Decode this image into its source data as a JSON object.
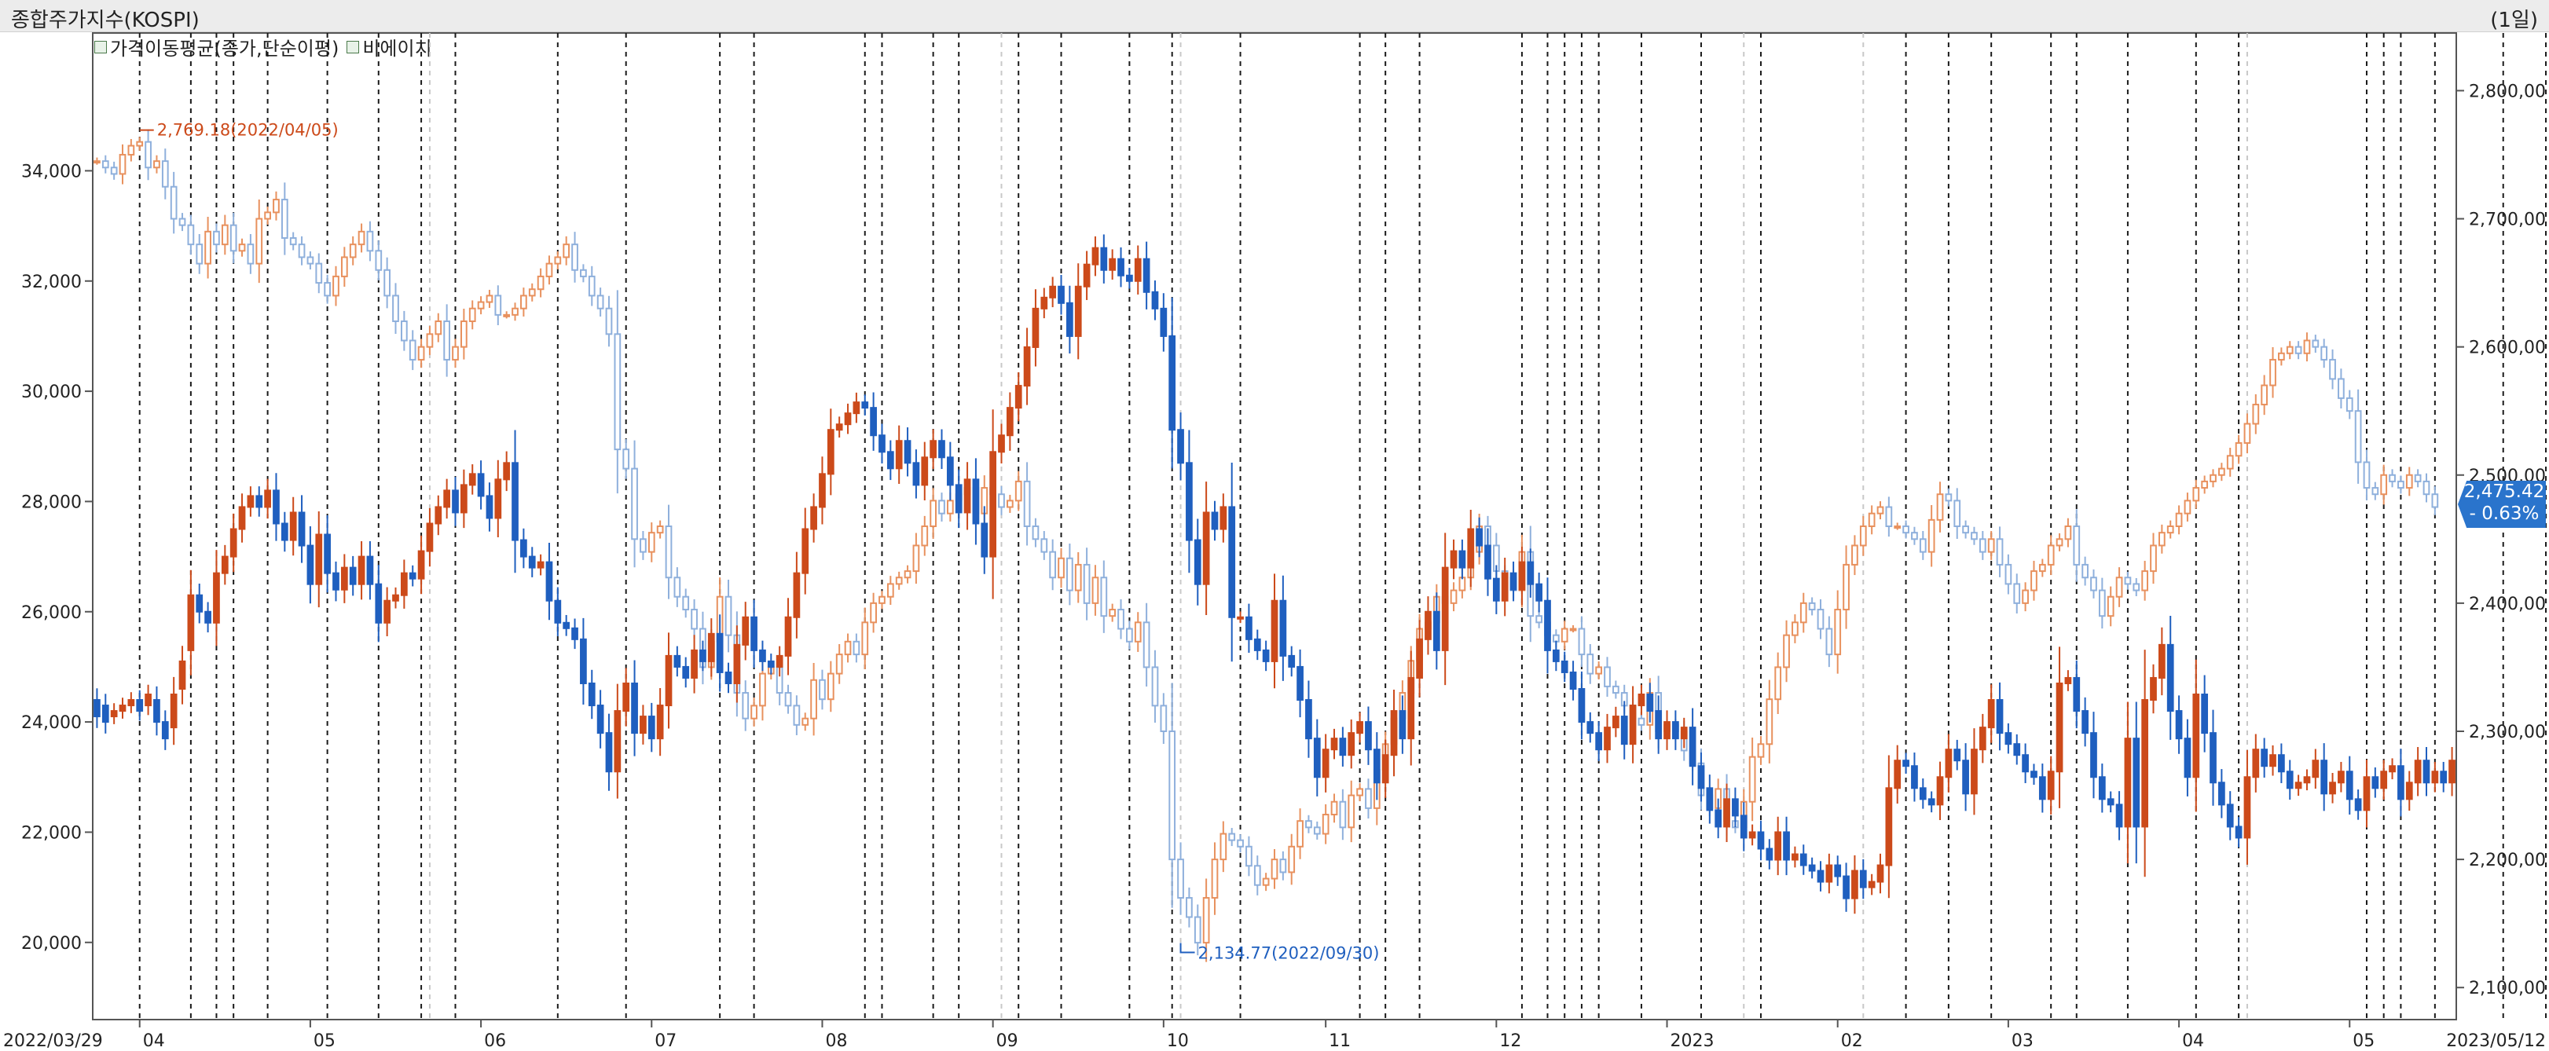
{
  "header": {
    "title": "종합주가지수(KOSPI)",
    "period": "(1일)"
  },
  "legend": {
    "items": [
      {
        "label": "가격이동평균(종가,단순이평)"
      },
      {
        "label": "비에이치"
      }
    ]
  },
  "badge": {
    "price": "2,475.42",
    "change": "- 0.63%"
  },
  "colors": {
    "up": "#cc4a1a",
    "down": "#1f5fbf",
    "up_light": "#e8915e",
    "down_light": "#8fb0dc",
    "vline": "#1a1a1a"
  },
  "chart_data": {
    "type": "candlestick",
    "title": "종합주가지수(KOSPI)",
    "x_start_label": "2022/03/29",
    "x_end_label": "2023/05/12",
    "x_tick_labels": [
      "04",
      "05",
      "06",
      "07",
      "08",
      "09",
      "10",
      "11",
      "12",
      "2023",
      "02",
      "03",
      "04",
      "05"
    ],
    "left_axis": {
      "ticks": [
        "20,000",
        "22,000",
        "24,000",
        "26,000",
        "28,000",
        "30,000",
        "32,000",
        "34,000"
      ],
      "ylim": [
        18600,
        36500
      ]
    },
    "right_axis": {
      "ticks": [
        "2,100,00",
        "2,200,00",
        "2,300,00",
        "2,400,00",
        "2,500,00",
        "2,600,00",
        "2,700,00",
        "2,800,00"
      ],
      "ylim": [
        2075,
        2845
      ]
    },
    "annotations": [
      {
        "text": "2,769.18(2022/04/05)",
        "value": 2769.18,
        "date_index": 5
      },
      {
        "text": "2,134.77(2022/09/30)",
        "value": 2134.77,
        "date_index": 127
      }
    ],
    "last_price": "2,475.42",
    "last_change": "- 0.63%",
    "series": [
      {
        "name": "비에이치",
        "axis": "left",
        "close": [
          24100,
          24000,
          24200,
          24300,
          24400,
          24200,
          24500,
          24000,
          23700,
          24500,
          25100,
          26300,
          26000,
          25800,
          26700,
          27000,
          27500,
          27900,
          28100,
          27900,
          28200,
          27600,
          27300,
          27800,
          27200,
          26500,
          27400,
          26700,
          26400,
          26800,
          26500,
          27000,
          26500,
          25800,
          26200,
          26300,
          26700,
          26600,
          27100,
          27600,
          27900,
          28200,
          27800,
          28300,
          28500,
          28100,
          27700,
          28400,
          28700,
          27300,
          27000,
          26800,
          26900,
          26200,
          25800,
          25700,
          25500,
          24700,
          24300,
          23800,
          23100,
          24200,
          24700,
          23800,
          24100,
          23700,
          24300,
          25200,
          25000,
          24800,
          25300,
          25100,
          25600,
          24900,
          24700,
          25400,
          25900,
          25300,
          25100,
          25000,
          25200,
          25900,
          26700,
          27500,
          27900,
          28500,
          29300,
          29400,
          29600,
          29800,
          29700,
          29200,
          28900,
          28600,
          29100,
          28700,
          28300,
          28800,
          29100,
          28800,
          28300,
          27800,
          28400,
          27600,
          27000,
          28900,
          29200,
          29700,
          30100,
          30800,
          31500,
          31700,
          31900,
          31600,
          31000,
          31900,
          32300,
          32600,
          32200,
          32400,
          32100,
          32000,
          32400,
          31800,
          31500,
          31000,
          29300,
          28700,
          27300,
          26500,
          27800,
          27500,
          27900,
          25900,
          25900,
          25500,
          25300,
          25100,
          26200,
          25200,
          25000,
          24400,
          23700,
          23000,
          23500,
          23700,
          23400,
          23800,
          24000,
          23500,
          22900,
          23400,
          24200,
          23700,
          24800,
          25500,
          26000,
          25300,
          26800,
          27100,
          26800,
          27500,
          27200,
          26600,
          26200,
          26700,
          26400,
          26900,
          26500,
          26200,
          25300,
          25100,
          24900,
          24600,
          24000,
          23800,
          23500,
          23900,
          24100,
          23600,
          24300,
          24500,
          24200,
          23700,
          24000,
          23700,
          23900,
          23200,
          22800,
          22400,
          22100,
          22600,
          22300,
          21900,
          22000,
          21700,
          21500,
          22000,
          21500,
          21600,
          21400,
          21300,
          21100,
          21400,
          21200,
          20800,
          21300,
          21000,
          21100,
          21400,
          22800,
          23300,
          23200,
          22800,
          22600,
          22500,
          23000,
          23500,
          23300,
          22700,
          23500,
          23900,
          24400,
          23800,
          23600,
          23400,
          23100,
          23000,
          22600,
          23100,
          24700,
          24800,
          24200,
          23800,
          23000,
          22600,
          22500,
          22100,
          23700,
          22100,
          24400,
          24800,
          25400,
          24200,
          23700,
          23000,
          24500,
          23800,
          22900,
          22500,
          22100,
          21900,
          23000,
          23500,
          23200,
          23400,
          23100,
          22800,
          22900,
          23000,
          23300,
          22700,
          22900,
          23100,
          22600,
          22400,
          23000,
          22800,
          23100,
          23200,
          22600,
          22900,
          23300,
          22900,
          23100,
          22900,
          23300
        ],
        "open": [
          24400,
          24300,
          24100,
          24200,
          24300,
          24400,
          24300,
          24400,
          24000,
          23900,
          24600,
          25300,
          26300,
          26000,
          25800,
          26700,
          27000,
          27500,
          27900,
          28100,
          27900,
          28200,
          27600,
          27300,
          27800,
          27200,
          26500,
          27400,
          26700,
          26400,
          26800,
          26500,
          27000,
          26500,
          25800,
          26200,
          26300,
          26700,
          26600,
          27100,
          27600,
          27900,
          28200,
          27800,
          28300,
          28500,
          28100,
          27700,
          28400,
          28700,
          27300,
          27000,
          26800,
          26900,
          26200,
          25800,
          25700,
          25500,
          24700,
          24300,
          23800,
          23100,
          24200,
          24700,
          23800,
          24100,
          23700,
          24300,
          25200,
          25000,
          24800,
          25300,
          25100,
          25600,
          24900,
          24700,
          25400,
          25900,
          25300,
          25100,
          25000,
          25200,
          25900,
          26700,
          27500,
          27900,
          28500,
          29300,
          29400,
          29600,
          29800,
          29700,
          29200,
          28900,
          28600,
          29100,
          28700,
          28300,
          28800,
          29100,
          28800,
          28300,
          27800,
          28400,
          27600,
          27000,
          28900,
          29200,
          29700,
          30100,
          30800,
          31500,
          31700,
          31900,
          31600,
          31000,
          31900,
          32300,
          32600,
          32200,
          32400,
          32100,
          32000,
          32400,
          31800,
          31500,
          31000,
          29300,
          28700,
          27300,
          26500,
          27800,
          27500,
          27900,
          25900,
          25900,
          25500,
          25300,
          25100,
          26200,
          25200,
          25000,
          24400,
          23700,
          23000,
          23500,
          23700,
          23400,
          23800,
          24000,
          23500,
          22900,
          23400,
          24200,
          23700,
          24800,
          25500,
          26000,
          25300,
          26800,
          27100,
          26800,
          27500,
          27200,
          26600,
          26200,
          26700,
          26400,
          26900,
          26500,
          26200,
          25300,
          25100,
          24900,
          24600,
          24000,
          23800,
          23500,
          23900,
          24100,
          23600,
          24300,
          24500,
          24200,
          23700,
          24000,
          23700,
          23900,
          23200,
          22800,
          22400,
          22100,
          22600,
          22300,
          21900,
          22000,
          21700,
          21500,
          22000,
          21500,
          21600,
          21400,
          21300,
          21100,
          21400,
          21200,
          20800,
          21300,
          21000,
          21100,
          21400,
          22800,
          23300,
          23200,
          22800,
          22600,
          22500,
          23000,
          23500,
          23300,
          22700,
          23500,
          23900,
          24400,
          23800,
          23600,
          23400,
          23100,
          23000,
          22600,
          23100,
          24700,
          24800,
          24200,
          23800,
          23000,
          22600,
          22500,
          22100,
          23700,
          22100,
          24400,
          24800,
          25400,
          24200,
          23700,
          23000,
          24500,
          23800,
          22900,
          22500,
          22100,
          21900,
          23000,
          23500,
          23200,
          23400,
          23100,
          22800,
          22900,
          23000,
          23300,
          22700,
          22900,
          23100,
          22600,
          22400,
          23000,
          22800,
          23100,
          23200,
          22600,
          22900,
          23300,
          22900,
          23100,
          22900
        ]
      },
      {
        "name": "종합주가지수(KOSPI)",
        "axis": "right",
        "close": [
          2745,
          2740,
          2735,
          2750,
          2757,
          2760,
          2740,
          2745,
          2725,
          2700,
          2695,
          2680,
          2665,
          2690,
          2680,
          2695,
          2675,
          2680,
          2665,
          2700,
          2705,
          2715,
          2685,
          2680,
          2670,
          2665,
          2650,
          2640,
          2655,
          2670,
          2680,
          2690,
          2675,
          2660,
          2640,
          2620,
          2605,
          2590,
          2600,
          2610,
          2620,
          2590,
          2600,
          2620,
          2630,
          2635,
          2640,
          2625,
          2625,
          2630,
          2640,
          2645,
          2655,
          2665,
          2670,
          2680,
          2660,
          2655,
          2640,
          2630,
          2610,
          2520,
          2505,
          2450,
          2440,
          2455,
          2460,
          2420,
          2405,
          2395,
          2380,
          2350,
          2370,
          2405,
          2375,
          2330,
          2310,
          2320,
          2345,
          2350,
          2330,
          2320,
          2305,
          2310,
          2340,
          2325,
          2345,
          2360,
          2370,
          2360,
          2385,
          2400,
          2405,
          2415,
          2420,
          2425,
          2445,
          2460,
          2480,
          2470,
          2480,
          2485,
          2490,
          2470,
          2490,
          2485,
          2475,
          2480,
          2495,
          2460,
          2450,
          2440,
          2420,
          2435,
          2410,
          2430,
          2400,
          2420,
          2390,
          2395,
          2380,
          2370,
          2385,
          2350,
          2320,
          2300,
          2200,
          2170,
          2155,
          2135,
          2170,
          2200,
          2220,
          2215,
          2210,
          2195,
          2180,
          2185,
          2200,
          2190,
          2210,
          2230,
          2225,
          2220,
          2235,
          2245,
          2225,
          2250,
          2255,
          2240,
          2270,
          2290,
          2310,
          2330,
          2355,
          2380,
          2385,
          2405,
          2400,
          2410,
          2420,
          2440,
          2460,
          2445,
          2425,
          2420,
          2410,
          2440,
          2390,
          2385,
          2375,
          2370,
          2380,
          2380,
          2360,
          2345,
          2350,
          2335,
          2330,
          2320,
          2310,
          2305,
          2330,
          2300,
          2305,
          2300,
          2285,
          2275,
          2250,
          2240,
          2255,
          2230,
          2225,
          2245,
          2280,
          2290,
          2325,
          2350,
          2375,
          2385,
          2400,
          2395,
          2380,
          2360,
          2395,
          2430,
          2445,
          2460,
          2470,
          2475,
          2460,
          2460,
          2455,
          2450,
          2440,
          2465,
          2485,
          2480,
          2460,
          2455,
          2450,
          2440,
          2450,
          2430,
          2415,
          2400,
          2410,
          2425,
          2430,
          2445,
          2450,
          2460,
          2430,
          2420,
          2410,
          2390,
          2405,
          2420,
          2415,
          2410,
          2425,
          2445,
          2455,
          2460,
          2470,
          2480,
          2490,
          2495,
          2500,
          2505,
          2515,
          2525,
          2540,
          2555,
          2570,
          2590,
          2595,
          2600,
          2595,
          2605,
          2600,
          2590,
          2575,
          2560,
          2550,
          2510,
          2490,
          2485,
          2500,
          2495,
          2490,
          2500,
          2495,
          2485,
          2475
        ]
      }
    ],
    "event_lines_idx": [
      5,
      11,
      14,
      16,
      20,
      27,
      33,
      38,
      42,
      54,
      62,
      73,
      77,
      90,
      92,
      98,
      101,
      108,
      113,
      121,
      126,
      134,
      148,
      151,
      155,
      167,
      170,
      172,
      174,
      176,
      181,
      188,
      195,
      212,
      217,
      222,
      229,
      232,
      238,
      246,
      251,
      266,
      268,
      270,
      274,
      282,
      287,
      290,
      294
    ],
    "event_lines_light_idx": [
      39,
      106,
      127,
      193,
      207,
      252
    ]
  }
}
